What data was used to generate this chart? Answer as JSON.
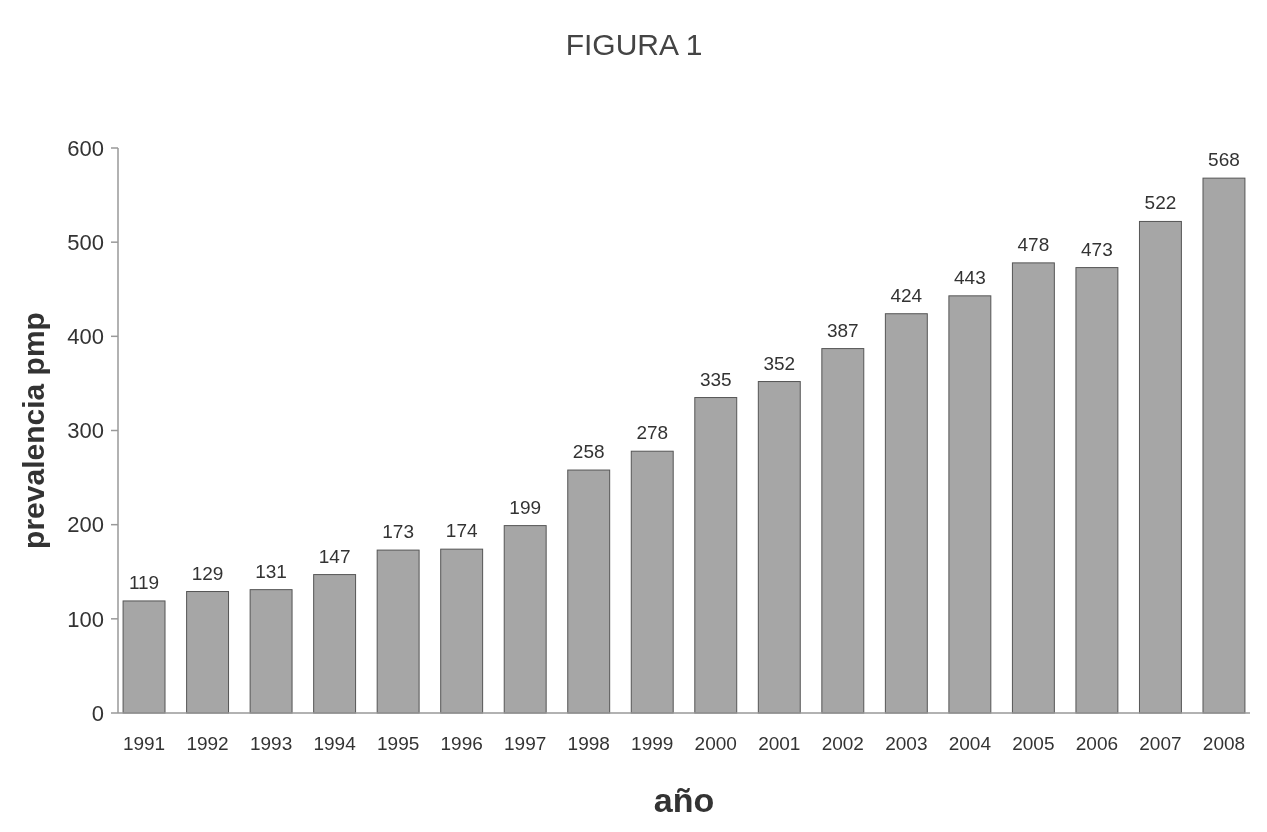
{
  "chart_data": {
    "type": "bar",
    "title": "FIGURA 1",
    "xlabel": "año",
    "ylabel": "prevalencia pmp",
    "categories": [
      "1991",
      "1992",
      "1993",
      "1994",
      "1995",
      "1996",
      "1997",
      "1998",
      "1999",
      "2000",
      "2001",
      "2002",
      "2003",
      "2004",
      "2005",
      "2006",
      "2007",
      "2008"
    ],
    "values": [
      119,
      129,
      131,
      147,
      173,
      174,
      199,
      258,
      278,
      335,
      352,
      387,
      424,
      443,
      478,
      473,
      522,
      568
    ],
    "color": "#a6a6a6",
    "ylim": [
      0,
      600
    ],
    "yticks": [
      0,
      100,
      200,
      300,
      400,
      500,
      600
    ],
    "grid": false,
    "data_labels": true
  }
}
